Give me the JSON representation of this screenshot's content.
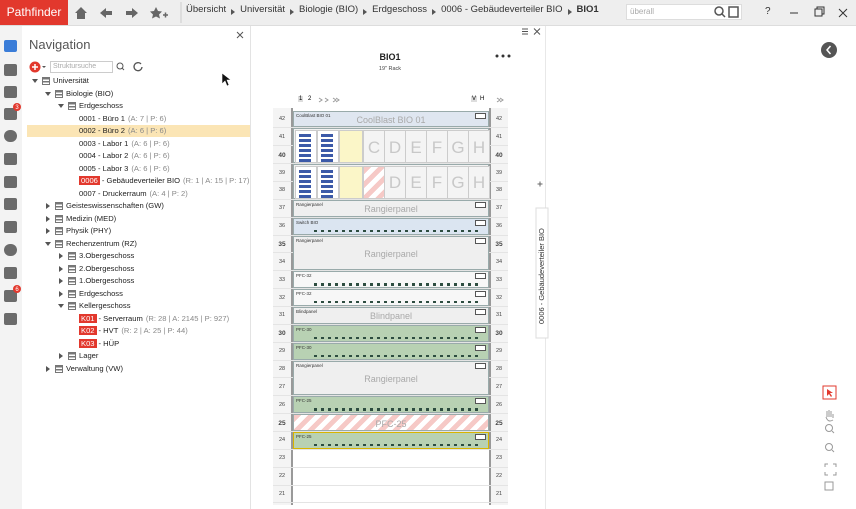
{
  "app": {
    "title": "Pathfinder",
    "help": "?"
  },
  "breadcrumb": [
    "Übersicht",
    "Universität",
    "Biologie (BIO)",
    "Erdgeschoss",
    "0006 - Gebäudeverteiler BIO",
    "BIO1"
  ],
  "search": {
    "placeholder": "überall"
  },
  "sidebar": {
    "badges": [
      "3",
      "6"
    ]
  },
  "navigation": {
    "title": "Navigation",
    "search_placeholder": "Struktursuche",
    "tree": [
      {
        "label": "Universität",
        "children": [
          {
            "label": "Biologie (BIO)",
            "children": [
              {
                "label": "Erdgeschoss",
                "children": [
                  {
                    "label": "0001 - Büro 1",
                    "info": "(A: 7 | P: 6)"
                  },
                  {
                    "label": "0002 - Büro 2",
                    "info": "(A: 6 | P: 6)",
                    "selected": true
                  },
                  {
                    "label": "0003 - Labor 1",
                    "info": "(A: 6 | P: 6)"
                  },
                  {
                    "label": "0004 - Labor 2",
                    "info": "(A: 6 | P: 6)"
                  },
                  {
                    "label": "0005 - Labor 3",
                    "info": "(A: 6 | P: 6)"
                  },
                  {
                    "code": "0006",
                    "label": "- Gebäudeverteiler BIO",
                    "info": "(R: 1 | A: 15 | P: 17)"
                  },
                  {
                    "label": "0007 - Druckerraum",
                    "info": "(A: 4 | P: 2)"
                  }
                ]
              }
            ]
          },
          {
            "label": "Geisteswissenschaften (GW)",
            "collapsed": true
          },
          {
            "label": "Medizin (MED)",
            "collapsed": true
          },
          {
            "label": "Physik (PHY)",
            "collapsed": true
          },
          {
            "label": "Rechenzentrum (RZ)",
            "children": [
              {
                "label": "3.Obergeschoss",
                "collapsed": true
              },
              {
                "label": "2.Obergeschoss",
                "collapsed": true
              },
              {
                "label": "1.Obergeschoss",
                "collapsed": true
              },
              {
                "label": "Erdgeschoss",
                "collapsed": true
              },
              {
                "label": "Kellergeschoss",
                "children": [
                  {
                    "code": "K01",
                    "label": "- Serverraum",
                    "info": "(R: 28 | A: 2145 | P: 927)"
                  },
                  {
                    "code": "K02",
                    "label": "- HVT",
                    "info": "(R: 2 | A: 25 | P: 44)"
                  },
                  {
                    "code": "K03",
                    "label": "- HÜP"
                  }
                ]
              },
              {
                "label": "Lager",
                "collapsed": true
              }
            ]
          },
          {
            "label": "Verwaltung (VW)",
            "collapsed": true
          }
        ]
      }
    ]
  },
  "rack": {
    "title": "BIO1",
    "subtitle": "19\" Rack",
    "pages": [
      "1",
      "2"
    ],
    "views": [
      "V",
      "H"
    ],
    "units": [
      42,
      41,
      40,
      39,
      38,
      37,
      36,
      35,
      34,
      33,
      32,
      31,
      30,
      29,
      28,
      27,
      26,
      25,
      24,
      23,
      22,
      21
    ],
    "devices": [
      {
        "units": [
          42
        ],
        "style": "cooler",
        "small": "CoolBlast BIO 01",
        "big": "CoolBlast BIO 01"
      },
      {
        "units": [
          41,
          40
        ],
        "style": "modules",
        "modules": [
          "C",
          "D",
          "E",
          "F",
          "G",
          "H"
        ]
      },
      {
        "units": [
          39,
          38
        ],
        "style": "modules",
        "modules": [
          "D",
          "E",
          "F",
          "G",
          "H"
        ]
      },
      {
        "units": [
          37
        ],
        "style": "panel",
        "small": "Rangierpanel",
        "big": "Rangierpanel"
      },
      {
        "units": [
          36
        ],
        "style": "switch",
        "small": "Switch BIO"
      },
      {
        "units": [
          35,
          34
        ],
        "style": "panel",
        "small": "Rangierpanel",
        "big": "Rangierpanel"
      },
      {
        "units": [
          33
        ],
        "style": "ports",
        "small": "PFC-32"
      },
      {
        "units": [
          32
        ],
        "style": "ports",
        "small": "PFC-32"
      },
      {
        "units": [
          31
        ],
        "style": "panel",
        "small": "Blindpanel",
        "big": "Blindpanel"
      },
      {
        "units": [
          30
        ],
        "style": "green",
        "small": "PFC-30"
      },
      {
        "units": [
          29
        ],
        "style": "green",
        "small": "PFC-30"
      },
      {
        "units": [
          28,
          27
        ],
        "style": "panel",
        "small": "Rangierpanel",
        "big": "Rangierpanel"
      },
      {
        "units": [
          26
        ],
        "style": "green",
        "small": "PFC-25"
      },
      {
        "units": [
          25
        ],
        "style": "hatched",
        "big": "PFC-25"
      },
      {
        "units": [
          24
        ],
        "style": "green-marked",
        "small": "PFC-25"
      }
    ]
  },
  "side_tab": "0006 - Gebäudeverteiler BIO"
}
